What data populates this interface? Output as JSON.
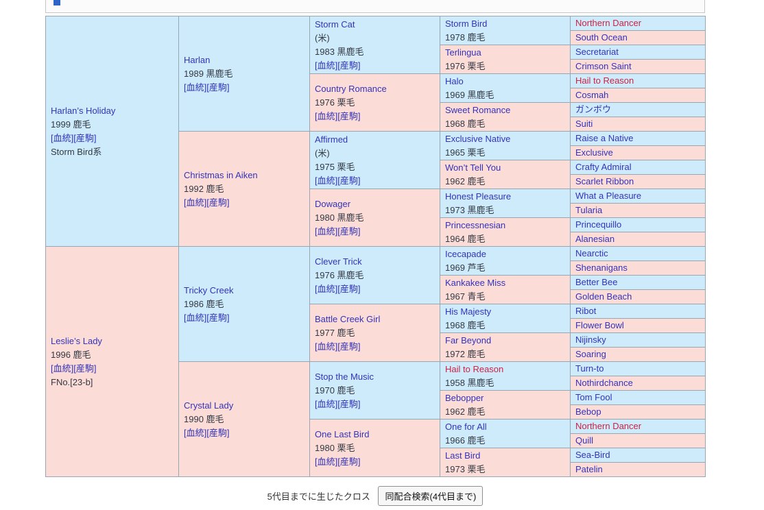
{
  "header_bar": {
    "marker_color": "#2e64c8"
  },
  "links": {
    "blood": "[血統]",
    "offspring": "[産駒]"
  },
  "pedigree": {
    "gen1": [
      {
        "name": "Harlan’s Holiday",
        "year_coat": "1999 鹿毛",
        "extra": "Storm Bird系",
        "cross": false
      },
      {
        "name": "Leslie’s Lady",
        "year_coat": "1996 鹿毛",
        "extra": "FNo.[23-b]",
        "cross": false
      }
    ],
    "gen2": [
      {
        "name": "Harlan",
        "year_coat": "1989 黒鹿毛",
        "cross": false
      },
      {
        "name": "Christmas in Aiken",
        "year_coat": "1992 鹿毛",
        "cross": false
      },
      {
        "name": "Tricky Creek",
        "year_coat": "1986 鹿毛",
        "cross": false
      },
      {
        "name": "Crystal Lady",
        "year_coat": "1990 鹿毛",
        "cross": false
      }
    ],
    "gen3": [
      {
        "name": "Storm Cat",
        "origin": "(米)",
        "year_coat": "1983 黒鹿毛",
        "cross": false
      },
      {
        "name": "Country Romance",
        "year_coat": "1976 栗毛",
        "cross": false
      },
      {
        "name": "Affirmed",
        "origin": "(米)",
        "year_coat": "1975 栗毛",
        "cross": false
      },
      {
        "name": "Dowager",
        "year_coat": "1980 黒鹿毛",
        "cross": false
      },
      {
        "name": "Clever Trick",
        "year_coat": "1976 黒鹿毛",
        "cross": false
      },
      {
        "name": "Battle Creek Girl",
        "year_coat": "1977 鹿毛",
        "cross": false
      },
      {
        "name": "Stop the Music",
        "year_coat": "1970 鹿毛",
        "cross": false
      },
      {
        "name": "One Last Bird",
        "year_coat": "1980 栗毛",
        "cross": false
      }
    ],
    "gen4": [
      {
        "name": "Storm Bird",
        "year_coat": "1978 鹿毛",
        "cross": false
      },
      {
        "name": "Terlingua",
        "year_coat": "1976 栗毛",
        "cross": false
      },
      {
        "name": "Halo",
        "year_coat": "1969 黒鹿毛",
        "cross": false
      },
      {
        "name": "Sweet Romance",
        "year_coat": "1968 鹿毛",
        "cross": false
      },
      {
        "name": "Exclusive Native",
        "year_coat": "1965 栗毛",
        "cross": false
      },
      {
        "name": "Won’t Tell You",
        "year_coat": "1962 鹿毛",
        "cross": false
      },
      {
        "name": "Honest Pleasure",
        "year_coat": "1973 黒鹿毛",
        "cross": false
      },
      {
        "name": "Princessnesian",
        "year_coat": "1964 鹿毛",
        "cross": false
      },
      {
        "name": "Icecapade",
        "year_coat": "1969 芦毛",
        "cross": false
      },
      {
        "name": "Kankakee Miss",
        "year_coat": "1967 青毛",
        "cross": false
      },
      {
        "name": "His Majesty",
        "year_coat": "1968 鹿毛",
        "cross": false
      },
      {
        "name": "Far Beyond",
        "year_coat": "1972 鹿毛",
        "cross": false
      },
      {
        "name": "Hail to Reason",
        "year_coat": "1958 黒鹿毛",
        "cross": true
      },
      {
        "name": "Bebopper",
        "year_coat": "1962 鹿毛",
        "cross": false
      },
      {
        "name": "One for All",
        "year_coat": "1966 鹿毛",
        "cross": false
      },
      {
        "name": "Last Bird",
        "year_coat": "1973 栗毛",
        "cross": false
      }
    ],
    "gen5": [
      {
        "name": "Northern Dancer",
        "cross": true
      },
      {
        "name": "South Ocean",
        "cross": false
      },
      {
        "name": "Secretariat",
        "cross": false
      },
      {
        "name": "Crimson Saint",
        "cross": false
      },
      {
        "name": "Hail to Reason",
        "cross": true
      },
      {
        "name": "Cosmah",
        "cross": false
      },
      {
        "name": "ガンボウ",
        "cross": false
      },
      {
        "name": "Suiti",
        "cross": false
      },
      {
        "name": "Raise a Native",
        "cross": false
      },
      {
        "name": "Exclusive",
        "cross": false
      },
      {
        "name": "Crafty Admiral",
        "cross": false
      },
      {
        "name": "Scarlet Ribbon",
        "cross": false
      },
      {
        "name": "What a Pleasure",
        "cross": false
      },
      {
        "name": "Tularia",
        "cross": false
      },
      {
        "name": "Princequillo",
        "cross": false
      },
      {
        "name": "Alanesian",
        "cross": false
      },
      {
        "name": "Nearctic",
        "cross": false
      },
      {
        "name": "Shenanigans",
        "cross": false
      },
      {
        "name": "Better Bee",
        "cross": false
      },
      {
        "name": "Golden Beach",
        "cross": false
      },
      {
        "name": "Ribot",
        "cross": false
      },
      {
        "name": "Flower Bowl",
        "cross": false
      },
      {
        "name": "Nijinsky",
        "cross": false
      },
      {
        "name": "Soaring",
        "cross": false
      },
      {
        "name": "Turn-to",
        "cross": false
      },
      {
        "name": "Nothirdchance",
        "cross": false
      },
      {
        "name": "Tom Fool",
        "cross": false
      },
      {
        "name": "Bebop",
        "cross": false
      },
      {
        "name": "Northern Dancer",
        "cross": true
      },
      {
        "name": "Quill",
        "cross": false
      },
      {
        "name": "Sea-Bird",
        "cross": false
      },
      {
        "name": "Patelin",
        "cross": false
      }
    ]
  },
  "footer": {
    "cross_note": "5代目までに生じたクロス",
    "search_button": "同配合検索(4代目まで)"
  }
}
